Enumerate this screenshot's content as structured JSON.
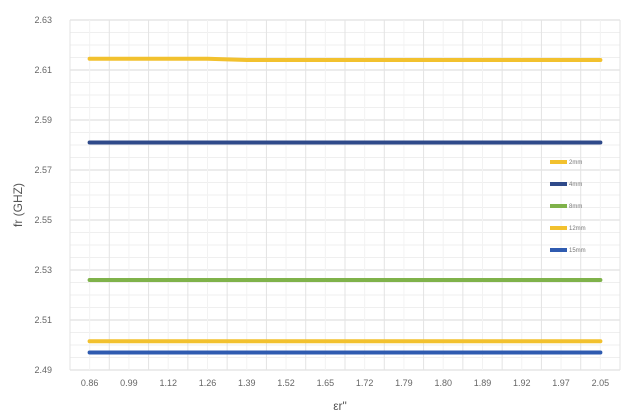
{
  "chart_data": {
    "type": "line",
    "title": "",
    "xlabel": "εr\"",
    "ylabel": "fr (GHZ)",
    "ylim": [
      2.49,
      2.63
    ],
    "yticks": [
      "2.49",
      "2.51",
      "2.53",
      "2.55",
      "2.57",
      "2.59",
      "2.61",
      "2.63"
    ],
    "categories": [
      "0.86",
      "0.99",
      "1.12",
      "1.26",
      "1.39",
      "1.52",
      "1.65",
      "1.72",
      "1.79",
      "1.80",
      "1.89",
      "1.92",
      "1.97",
      "2.05"
    ],
    "grid": true,
    "legend_position": "right",
    "series": [
      {
        "name": "2mm",
        "color": "#f2c12e",
        "values": [
          2.6145,
          2.6145,
          2.6145,
          2.6145,
          2.614,
          2.614,
          2.614,
          2.614,
          2.614,
          2.614,
          2.614,
          2.614,
          2.614,
          2.614
        ]
      },
      {
        "name": "4mm",
        "color": "#2f4a8a",
        "values": [
          2.581,
          2.581,
          2.581,
          2.581,
          2.581,
          2.581,
          2.581,
          2.581,
          2.581,
          2.581,
          2.581,
          2.581,
          2.581,
          2.581
        ]
      },
      {
        "name": "8mm",
        "color": "#7fb24a",
        "values": [
          2.526,
          2.526,
          2.526,
          2.526,
          2.526,
          2.526,
          2.526,
          2.526,
          2.526,
          2.526,
          2.526,
          2.526,
          2.526,
          2.526
        ]
      },
      {
        "name": "12mm",
        "color": "#f2c12e",
        "values": [
          2.5015,
          2.5015,
          2.5015,
          2.5015,
          2.5015,
          2.5015,
          2.5015,
          2.5015,
          2.5015,
          2.5015,
          2.5015,
          2.5015,
          2.5015,
          2.5015
        ]
      },
      {
        "name": "15mm",
        "color": "#2f5bb0",
        "values": [
          2.497,
          2.497,
          2.497,
          2.497,
          2.497,
          2.497,
          2.497,
          2.497,
          2.497,
          2.497,
          2.497,
          2.497,
          2.497,
          2.497
        ]
      }
    ]
  }
}
